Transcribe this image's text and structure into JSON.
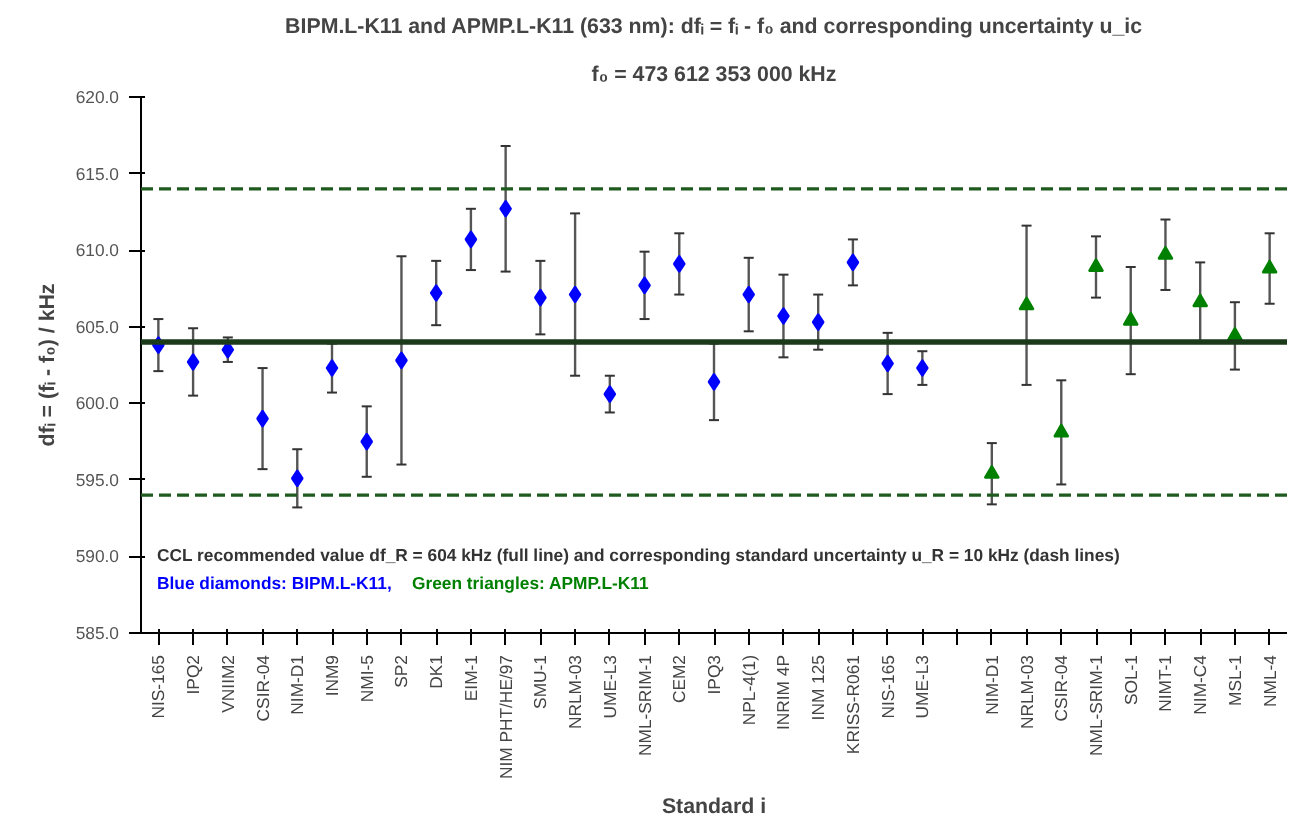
{
  "chart_data": {
    "type": "scatter",
    "title": "BIPM.L-K11 and APMP.L-K11 (633 nm): dfᵢ = fᵢ - f₀ and corresponding uncertainty u_ic",
    "subtitle": "f₀ = 473 612 353 000 kHz",
    "xlabel": "Standard i",
    "ylabel": "dfᵢ = (fᵢ - f₀) / kHz",
    "annotations": [
      "CCL recommended value df_R = 604 kHz (full line) and corresponding standard uncertainty u_R = 10 kHz (dash lines)"
    ],
    "categories": [
      "NIS-165",
      "IPQ2",
      "VNIIM2",
      "CSIR-04",
      "NIM-D1",
      "INM9",
      "NMI-5",
      "SP2",
      "DK1",
      "EIM-1",
      "NIM PHT/HE/97",
      "SMU-1",
      "NRLM-03",
      "UME-L3",
      "NML-SRIM-1",
      "CEM2",
      "IPQ3",
      "NPL-4(1)",
      "INRIM 4P",
      "INM 125",
      "KRISS-R061",
      "NIS-165",
      "UME-L3",
      null,
      "NIM-D1",
      "NRLM-03",
      "CSIR-04",
      "NML-SRIM-1",
      "SOL-1",
      "NIMT-1",
      "NIM-C4",
      "MSL-1",
      "NML-4"
    ],
    "series": [
      {
        "name": "Blue diamonds: BIPM.L-K11,",
        "color": "#0000ff",
        "marker": "diamond",
        "values": [
          603.8,
          602.7,
          603.5,
          599.0,
          595.1,
          602.3,
          597.5,
          602.8,
          607.2,
          610.7,
          612.7,
          606.9,
          607.1,
          600.6,
          607.7,
          609.1,
          601.4,
          607.1,
          605.7,
          605.3,
          609.2,
          602.6,
          602.3,
          null,
          null,
          null,
          null,
          null,
          null,
          null,
          null,
          null,
          null
        ],
        "errors": [
          1.7,
          2.2,
          0.8,
          3.3,
          1.9,
          1.6,
          2.3,
          6.8,
          2.1,
          2.0,
          4.1,
          2.4,
          5.3,
          1.2,
          2.2,
          2.0,
          2.5,
          2.4,
          2.7,
          1.8,
          1.5,
          2.0,
          1.1,
          null,
          null,
          null,
          null,
          null,
          null,
          null,
          null,
          null,
          null
        ]
      },
      {
        "name": "Green triangles: APMP.L-K11",
        "color": "#008000",
        "marker": "triangle",
        "values": [
          null,
          null,
          null,
          null,
          null,
          null,
          null,
          null,
          null,
          null,
          null,
          null,
          null,
          null,
          null,
          null,
          null,
          null,
          null,
          null,
          null,
          null,
          null,
          null,
          595.4,
          606.4,
          598.1,
          608.9,
          605.4,
          609.7,
          606.6,
          604.4,
          608.8
        ],
        "errors": [
          null,
          null,
          null,
          null,
          null,
          null,
          null,
          null,
          null,
          null,
          null,
          null,
          null,
          null,
          null,
          null,
          null,
          null,
          null,
          null,
          null,
          null,
          null,
          null,
          2.0,
          5.2,
          3.4,
          2.0,
          3.5,
          2.3,
          2.6,
          2.2,
          2.3
        ]
      }
    ],
    "ylim": [
      585,
      620
    ],
    "yticks": [
      {
        "value": 585,
        "label": "585.0"
      },
      {
        "value": 590,
        "label": "590.0"
      },
      {
        "value": 595,
        "label": "595.0"
      },
      {
        "value": 600,
        "label": "600.0"
      },
      {
        "value": 605,
        "label": "605.0"
      },
      {
        "value": 610,
        "label": "610.0"
      },
      {
        "value": 615,
        "label": "615.0"
      },
      {
        "value": 620,
        "label": "620.0"
      }
    ],
    "ref_lines": [
      {
        "axis": "y",
        "value": 604,
        "color": "#1a3a1a",
        "line_style": "solid"
      },
      {
        "axis": "y",
        "value": 594,
        "color": "#1f5a1f",
        "line_style": "dashed"
      },
      {
        "axis": "y",
        "value": 614,
        "color": "#1f5a1f",
        "line_style": "dashed"
      }
    ],
    "grid": false,
    "legend": "bottom left"
  }
}
